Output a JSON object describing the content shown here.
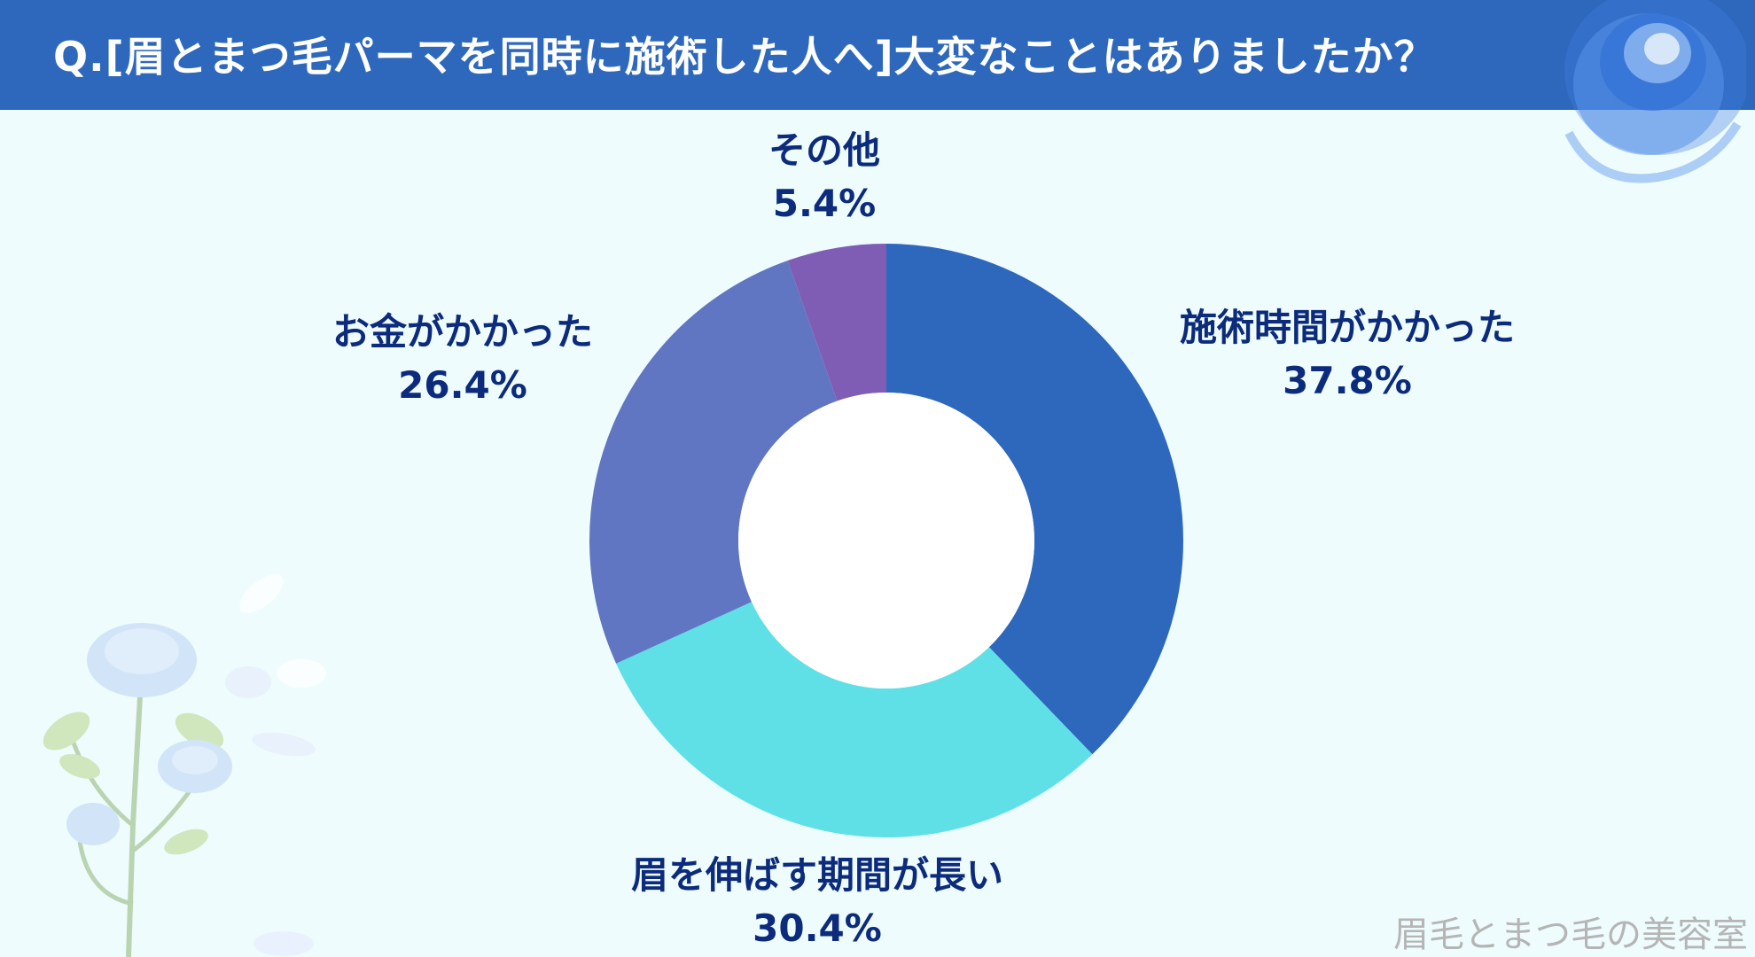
{
  "header": {
    "title": "Q.[眉とまつ毛パーマを同時に施術した人へ]大変なことはありましたか？"
  },
  "watermark": "眉毛とまつ毛の美容室",
  "colors": {
    "header_bg": "#2e68bd",
    "background": "#eefcfd",
    "label_text": "#0c2b7c"
  },
  "chart_data": {
    "type": "pie",
    "donut": true,
    "title": "",
    "slices": [
      {
        "label": "施術時間がかかった",
        "value_label": "37.8%",
        "value": 37.8,
        "color": "#2e68bd"
      },
      {
        "label": "眉を伸ばす期間が長い",
        "value_label": "30.4%",
        "value": 30.4,
        "color": "#5fe0e6"
      },
      {
        "label": "お金がかかった",
        "value_label": "26.4%",
        "value": 26.4,
        "color": "#6176c2"
      },
      {
        "label": "その他",
        "value_label": "5.4%",
        "value": 5.4,
        "color": "#7f5db5"
      }
    ]
  }
}
